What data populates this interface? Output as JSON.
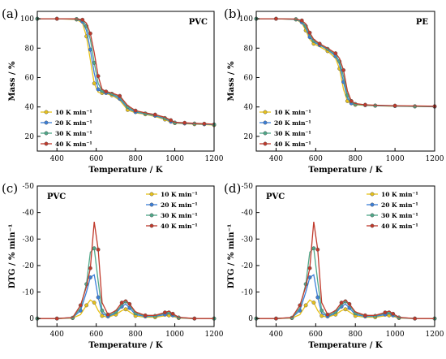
{
  "chart_data": [
    {
      "panel_label": "(a)",
      "type": "line",
      "title": "PVC",
      "xlabel": "Temperature / K",
      "ylabel": "Mass / %",
      "xlim": [
        300,
        1200
      ],
      "ylim": [
        10,
        105
      ],
      "y_inverted": false,
      "xticks": [
        400,
        600,
        800,
        1000,
        1200
      ],
      "yticks": [
        20,
        40,
        60,
        80,
        100
      ],
      "legend_position": "bottom-left",
      "grid": false,
      "series": [
        {
          "name": "10 K min⁻¹",
          "color": "#e8c21a",
          "x": [
            300,
            400,
            500,
            530,
            550,
            570,
            590,
            610,
            630,
            650,
            680,
            720,
            760,
            800,
            850,
            900,
            950,
            980,
            1000,
            1050,
            1100,
            1150,
            1200
          ],
          "y": [
            100,
            100,
            99.5,
            97,
            88,
            72,
            56,
            50,
            49.5,
            49,
            48,
            44.5,
            38,
            36,
            35,
            33.5,
            31.5,
            29.5,
            29,
            28.6,
            28.3,
            28,
            27.7
          ]
        },
        {
          "name": "20 K min⁻¹",
          "color": "#3b7fd9",
          "x": [
            300,
            400,
            500,
            530,
            550,
            570,
            590,
            610,
            630,
            650,
            680,
            720,
            760,
            800,
            850,
            900,
            950,
            980,
            1000,
            1050,
            1100,
            1150,
            1200
          ],
          "y": [
            100,
            100,
            99.7,
            98,
            92,
            79,
            63,
            52,
            50,
            49.5,
            48.5,
            45.5,
            39,
            36.5,
            35.3,
            34,
            32,
            30,
            29.2,
            28.8,
            28.5,
            28.2,
            27.9
          ]
        },
        {
          "name": "30 K min⁻¹",
          "color": "#4fa889",
          "x": [
            300,
            400,
            500,
            530,
            550,
            570,
            590,
            610,
            630,
            650,
            680,
            720,
            760,
            800,
            850,
            900,
            950,
            980,
            1000,
            1050,
            1100,
            1150,
            1200
          ],
          "y": [
            100,
            100,
            99.8,
            98.8,
            95,
            86,
            70,
            56,
            51,
            50,
            49,
            46.5,
            40,
            37,
            35.6,
            34.4,
            32.5,
            30.5,
            29.4,
            29,
            28.7,
            28.4,
            28.1
          ]
        },
        {
          "name": "40 K min⁻¹",
          "color": "#c0392b",
          "x": [
            300,
            400,
            500,
            530,
            550,
            570,
            590,
            610,
            630,
            650,
            680,
            720,
            760,
            800,
            850,
            900,
            950,
            980,
            1000,
            1050,
            1100,
            1150,
            1200
          ],
          "y": [
            100,
            100,
            99.9,
            99.3,
            97,
            90,
            77,
            61,
            52,
            50.5,
            49.5,
            47.5,
            41,
            37.5,
            36,
            34.8,
            33,
            31,
            29.6,
            29.2,
            28.9,
            28.6,
            28.3
          ]
        }
      ]
    },
    {
      "panel_label": "(b)",
      "type": "line",
      "title": "PE",
      "xlabel": "Temperature / K",
      "ylabel": "Mass / %",
      "xlim": [
        300,
        1200
      ],
      "ylim": [
        10,
        105
      ],
      "y_inverted": false,
      "xticks": [
        400,
        600,
        800,
        1000,
        1200
      ],
      "yticks": [
        20,
        40,
        60,
        80,
        100
      ],
      "legend_position": "bottom-left",
      "grid": false,
      "series": [
        {
          "name": "10 K min⁻¹",
          "color": "#e8c21a",
          "x": [
            300,
            400,
            500,
            530,
            550,
            570,
            590,
            620,
            660,
            700,
            720,
            740,
            760,
            780,
            800,
            850,
            900,
            1000,
            1100,
            1200
          ],
          "y": [
            100,
            100,
            99.5,
            97,
            92,
            86,
            83,
            81,
            78,
            73,
            66,
            52,
            44,
            42,
            41.5,
            41,
            40.8,
            40.5,
            40.3,
            40.1
          ]
        },
        {
          "name": "20 K min⁻¹",
          "color": "#3b7fd9",
          "x": [
            300,
            400,
            500,
            530,
            550,
            570,
            590,
            620,
            660,
            700,
            720,
            740,
            760,
            780,
            800,
            850,
            900,
            1000,
            1100,
            1200
          ],
          "y": [
            100,
            100,
            99.6,
            97.6,
            93.5,
            87.5,
            84,
            82,
            79,
            74.5,
            69,
            57,
            46,
            42.5,
            41.8,
            41.2,
            40.9,
            40.6,
            40.4,
            40.2
          ]
        },
        {
          "name": "30 K min⁻¹",
          "color": "#4fa889",
          "x": [
            300,
            400,
            500,
            530,
            550,
            570,
            590,
            620,
            660,
            700,
            720,
            740,
            760,
            780,
            800,
            850,
            900,
            1000,
            1100,
            1200
          ],
          "y": [
            100,
            100,
            99.7,
            98.2,
            95,
            89,
            85,
            82.5,
            79.5,
            75.5,
            71,
            61,
            48,
            43,
            42,
            41.3,
            41,
            40.7,
            40.5,
            40.3
          ]
        },
        {
          "name": "40 K min⁻¹",
          "color": "#c0392b",
          "x": [
            300,
            400,
            500,
            530,
            550,
            570,
            590,
            620,
            660,
            700,
            720,
            740,
            760,
            780,
            800,
            850,
            900,
            1000,
            1100,
            1200
          ],
          "y": [
            100,
            100,
            99.8,
            98.8,
            96.5,
            90.5,
            86,
            83,
            80,
            76.5,
            73,
            65,
            51,
            44,
            42.3,
            41.5,
            41.2,
            40.9,
            40.7,
            40.5
          ]
        }
      ]
    },
    {
      "panel_label": "(c)",
      "type": "line",
      "title": "PVC",
      "xlabel": "Temperature / K",
      "ylabel": "DTG / % min⁻¹",
      "xlim": [
        300,
        1200
      ],
      "ylim": [
        -50,
        3
      ],
      "y_inverted": true,
      "xticks": [
        400,
        600,
        800,
        1000,
        1200
      ],
      "yticks": [
        0,
        -10,
        -20,
        -30,
        -40,
        -50
      ],
      "legend_position": "top-right",
      "grid": false,
      "series": [
        {
          "name": "10 K min⁻¹",
          "color": "#e8c21a",
          "x": [
            300,
            400,
            480,
            520,
            550,
            570,
            590,
            610,
            630,
            660,
            700,
            730,
            750,
            770,
            800,
            850,
            900,
            950,
            970,
            990,
            1020,
            1100,
            1200
          ],
          "y": [
            0,
            0,
            -0.2,
            -1.5,
            -5,
            -7,
            -6,
            -3,
            -1,
            -0.5,
            -1.5,
            -3,
            -3.5,
            -2.5,
            -1,
            -0.5,
            -0.5,
            -1,
            -1.2,
            -0.8,
            -0.2,
            0,
            0
          ]
        },
        {
          "name": "20 K min⁻¹",
          "color": "#3b7fd9",
          "x": [
            300,
            400,
            480,
            520,
            550,
            570,
            590,
            610,
            630,
            660,
            700,
            730,
            750,
            770,
            800,
            850,
            900,
            950,
            970,
            990,
            1020,
            1100,
            1200
          ],
          "y": [
            0,
            0,
            -0.3,
            -3,
            -10,
            -15.5,
            -16.5,
            -8,
            -2,
            -0.8,
            -2,
            -4.5,
            -5.5,
            -4,
            -1.5,
            -0.8,
            -0.8,
            -1.5,
            -1.8,
            -1.2,
            -0.3,
            0,
            0
          ]
        },
        {
          "name": "30 K min⁻¹",
          "color": "#4fa889",
          "x": [
            300,
            400,
            480,
            520,
            550,
            570,
            590,
            610,
            630,
            660,
            700,
            730,
            750,
            770,
            800,
            850,
            900,
            950,
            970,
            990,
            1020,
            1100,
            1200
          ],
          "y": [
            0,
            0,
            -0.3,
            -4,
            -13,
            -25,
            -26.5,
            -14,
            -3,
            -1,
            -2.5,
            -5,
            -6.5,
            -5,
            -2,
            -1,
            -1,
            -2,
            -2.3,
            -1.5,
            -0.4,
            0,
            0
          ]
        },
        {
          "name": "40 K min⁻¹",
          "color": "#c0392b",
          "x": [
            300,
            400,
            480,
            520,
            550,
            570,
            590,
            610,
            630,
            660,
            700,
            730,
            750,
            770,
            800,
            850,
            900,
            950,
            970,
            990,
            1020,
            1100,
            1200
          ],
          "y": [
            0,
            0,
            -0.4,
            -5,
            -12,
            -19,
            -36.5,
            -26,
            -6,
            -1.5,
            -3,
            -6,
            -7,
            -5.5,
            -2.5,
            -1.2,
            -1.2,
            -2.3,
            -2.8,
            -1.8,
            -0.5,
            0,
            0
          ]
        }
      ]
    },
    {
      "panel_label": "(d)",
      "type": "line",
      "title": "PVC",
      "xlabel": "Temperature / K",
      "ylabel": "DTG / % min⁻¹",
      "xlim": [
        300,
        1200
      ],
      "ylim": [
        -50,
        3
      ],
      "y_inverted": true,
      "xticks": [
        400,
        600,
        800,
        1000,
        1200
      ],
      "yticks": [
        0,
        -10,
        -20,
        -30,
        -40,
        -50
      ],
      "legend_position": "top-right",
      "grid": false,
      "series": [
        {
          "name": "10 K min⁻¹",
          "color": "#e8c21a",
          "x": [
            300,
            400,
            480,
            520,
            550,
            570,
            590,
            610,
            630,
            660,
            700,
            730,
            750,
            770,
            800,
            850,
            900,
            950,
            970,
            990,
            1020,
            1100,
            1200
          ],
          "y": [
            0,
            0,
            -0.2,
            -1.5,
            -5,
            -7,
            -6,
            -3,
            -1,
            -0.5,
            -1.5,
            -3,
            -3.5,
            -2.5,
            -1,
            -0.5,
            -0.5,
            -1,
            -1.2,
            -0.8,
            -0.2,
            0,
            0
          ]
        },
        {
          "name": "20 K min⁻¹",
          "color": "#3b7fd9",
          "x": [
            300,
            400,
            480,
            520,
            550,
            570,
            590,
            610,
            630,
            660,
            700,
            730,
            750,
            770,
            800,
            850,
            900,
            950,
            970,
            990,
            1020,
            1100,
            1200
          ],
          "y": [
            0,
            0,
            -0.3,
            -3,
            -10,
            -15.5,
            -16.5,
            -8,
            -2,
            -0.8,
            -2,
            -4.5,
            -5.5,
            -4,
            -1.5,
            -0.8,
            -0.8,
            -1.5,
            -1.8,
            -1.2,
            -0.3,
            0,
            0
          ]
        },
        {
          "name": "30 K min⁻¹",
          "color": "#4fa889",
          "x": [
            300,
            400,
            480,
            520,
            550,
            570,
            590,
            610,
            630,
            660,
            700,
            730,
            750,
            770,
            800,
            850,
            900,
            950,
            970,
            990,
            1020,
            1100,
            1200
          ],
          "y": [
            0,
            0,
            -0.3,
            -4,
            -13,
            -25,
            -26.5,
            -14,
            -3,
            -1,
            -2.5,
            -5,
            -6.5,
            -5,
            -2,
            -1,
            -1,
            -2,
            -2.3,
            -1.5,
            -0.4,
            0,
            0
          ]
        },
        {
          "name": "40 K min⁻¹",
          "color": "#c0392b",
          "x": [
            300,
            400,
            480,
            520,
            550,
            570,
            590,
            610,
            630,
            660,
            700,
            730,
            750,
            770,
            800,
            850,
            900,
            950,
            970,
            990,
            1020,
            1100,
            1200
          ],
          "y": [
            0,
            0,
            -0.4,
            -5,
            -12,
            -19,
            -36.5,
            -26,
            -6,
            -1.5,
            -3,
            -6,
            -7,
            -5.5,
            -2.5,
            -1.2,
            -1.2,
            -2.3,
            -2.8,
            -1.8,
            -0.5,
            0,
            0
          ]
        }
      ]
    }
  ]
}
